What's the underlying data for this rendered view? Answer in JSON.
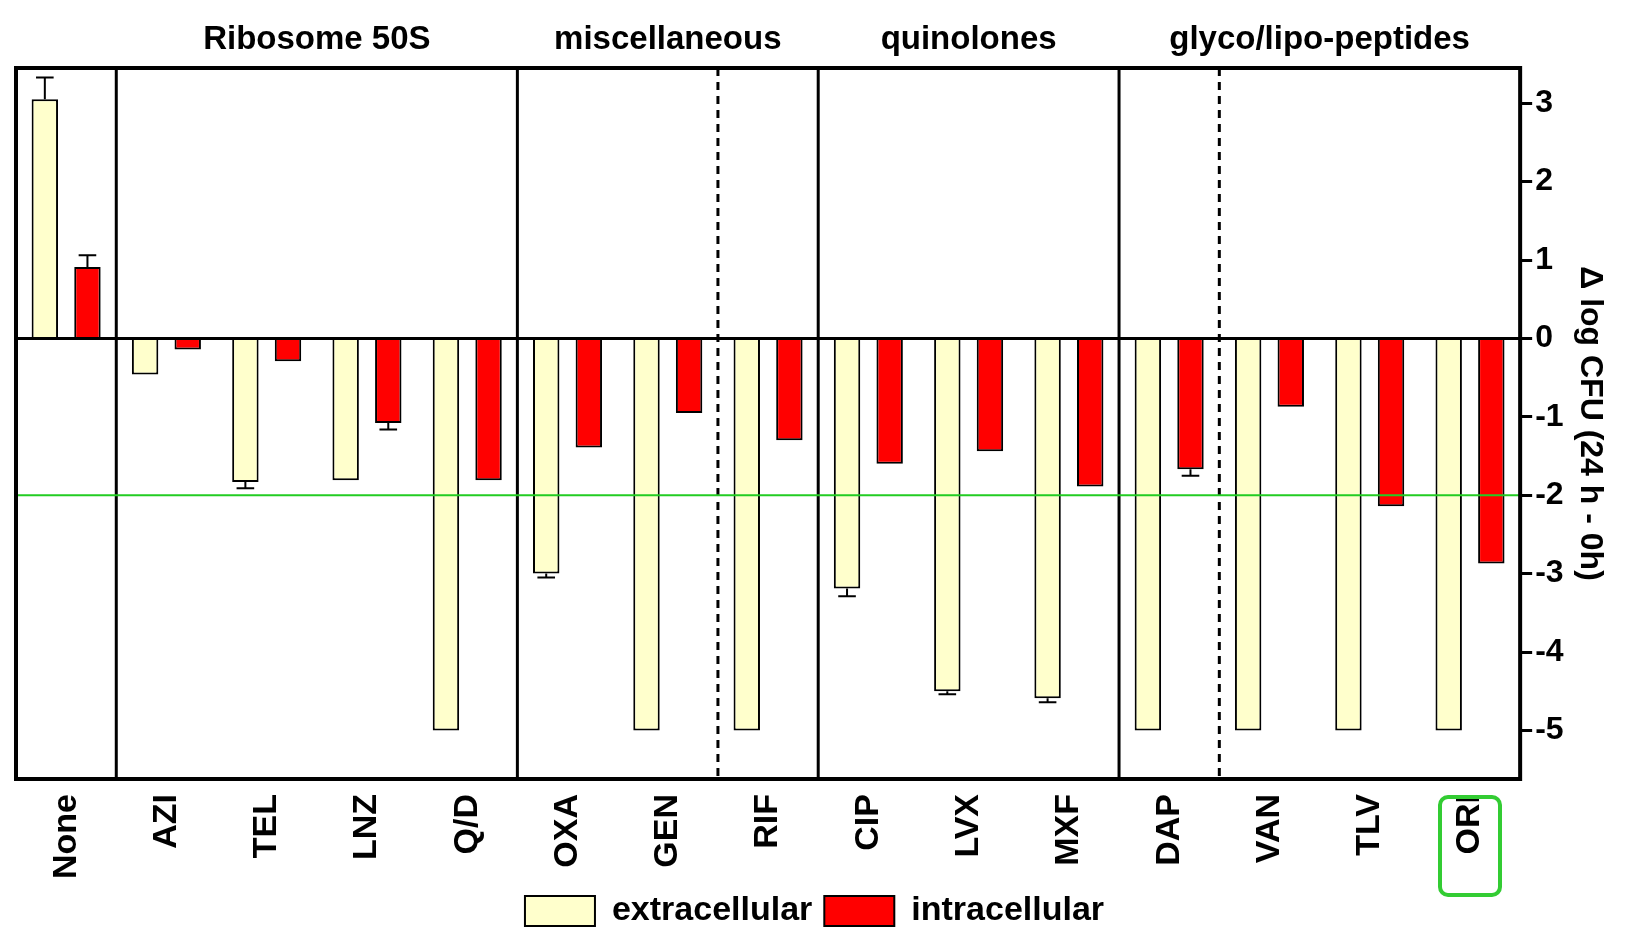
{
  "chart_data": {
    "type": "bar",
    "ylabel": "Δ log CFU (24 h - 0h)",
    "categories": [
      "None",
      "AZI",
      "TEL",
      "LNZ",
      "Q/D",
      "OXA",
      "GEN",
      "RIF",
      "CIP",
      "LVX",
      "MXF",
      "DAP",
      "VAN",
      "TLV",
      "ORI"
    ],
    "series": [
      {
        "name": "extracellular",
        "color": "#ffffcc",
        "values": [
          3.05,
          -0.46,
          -1.83,
          -1.81,
          -5,
          -3.0,
          -5,
          -5,
          -3.19,
          -4.5,
          -4.59,
          -5,
          -5,
          -5,
          -5
        ],
        "errors": [
          0.28,
          null,
          0.08,
          null,
          null,
          0.05,
          null,
          null,
          0.1,
          0.04,
          0.05,
          null,
          null,
          null,
          null
        ]
      },
      {
        "name": "intracellular",
        "color": "#ff0000",
        "values": [
          0.91,
          -0.14,
          -0.29,
          -1.08,
          -1.81,
          -1.39,
          -0.95,
          -1.3,
          -1.6,
          -1.44,
          -1.89,
          -1.67,
          -0.87,
          -2.14,
          -2.87
        ],
        "errors": [
          0.15,
          null,
          null,
          0.08,
          null,
          null,
          null,
          null,
          null,
          null,
          null,
          0.08,
          null,
          null,
          null
        ]
      }
    ],
    "ylim": [
      -5.62,
      3.45
    ],
    "yticks": [
      -5,
      -4,
      -3,
      -2,
      -1,
      0,
      1,
      2,
      3
    ],
    "grid": false,
    "legend": "bottom",
    "ref_lines": [
      {
        "axis": "y",
        "value": -2,
        "color": "#22cc22",
        "line_style": "solid"
      },
      {
        "axis": "y",
        "value": 0,
        "color": "#000000",
        "line_style": "solid"
      }
    ],
    "annotations": [
      "Ribosome 50S",
      "miscellaneous",
      "quinolones",
      "glyco/lipo-peptides"
    ]
  }
}
